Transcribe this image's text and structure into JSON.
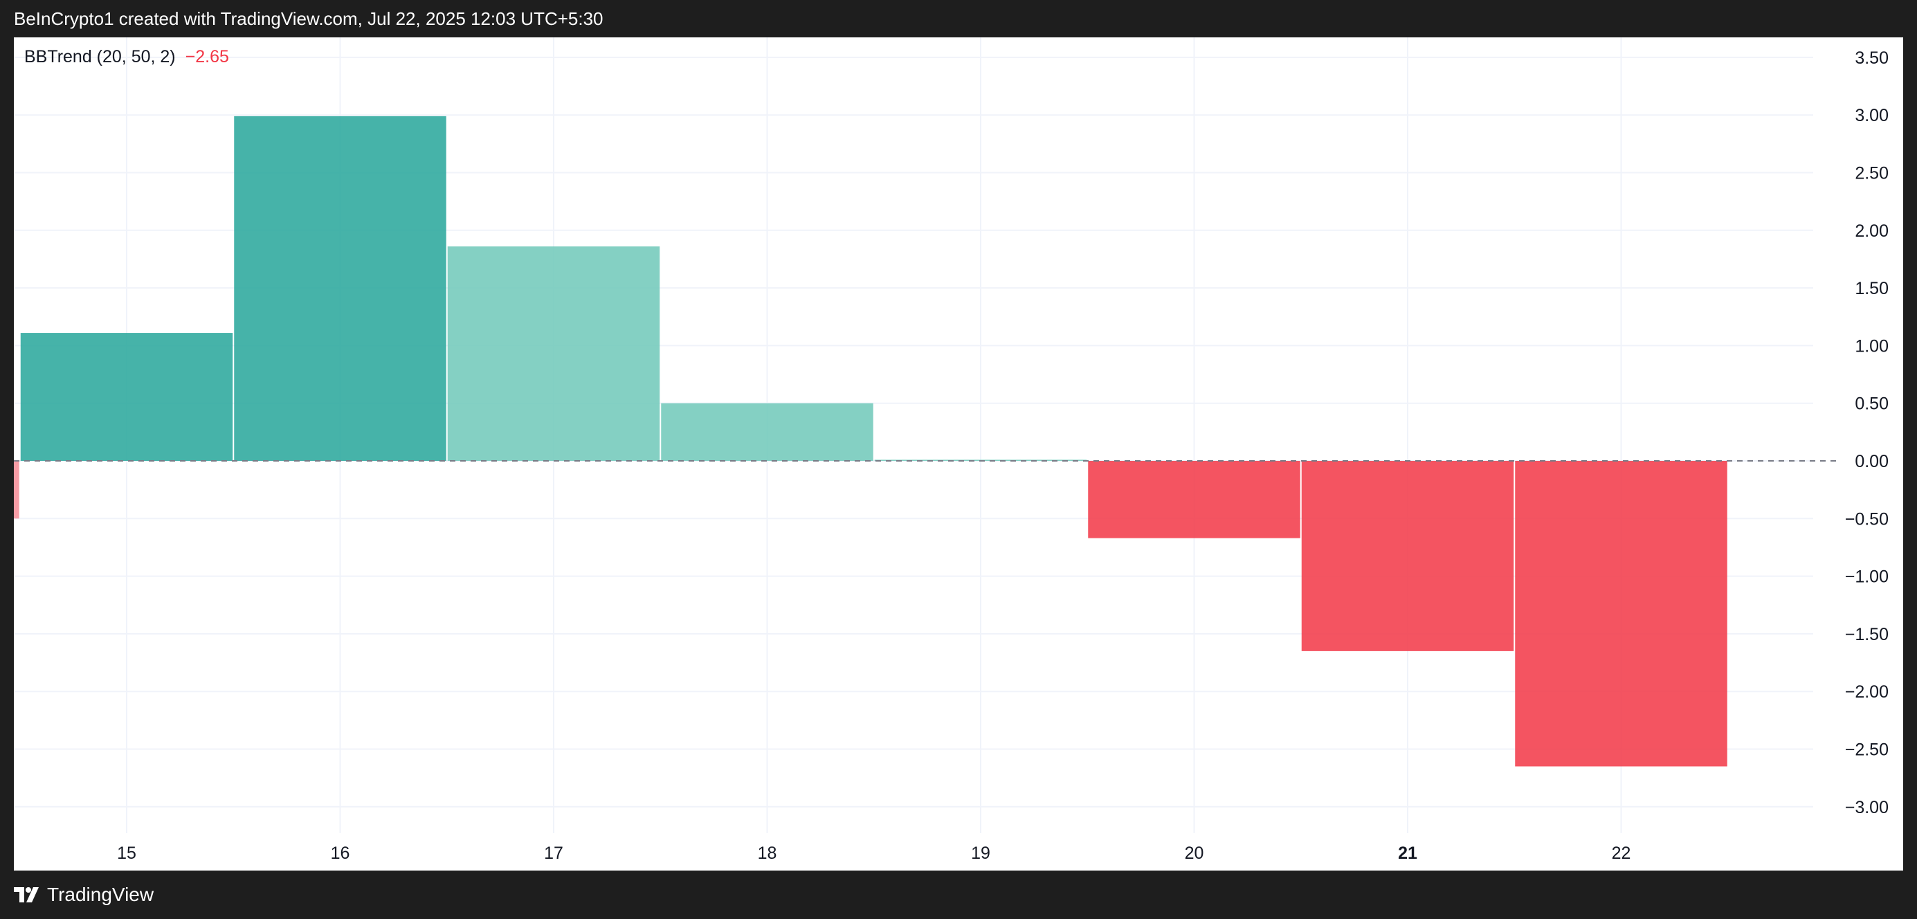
{
  "header": {
    "attribution": "BeInCrypto1 created with TradingView.com, Jul 22, 2025 12:03 UTC+5:30"
  },
  "legend": {
    "name": "BBTrend (20, 50, 2)",
    "value": "−2.65"
  },
  "footer": {
    "brand": "TradingView"
  },
  "colors": {
    "up_strong": "#26a69a",
    "up_weak": "#6fc8b9",
    "down_weak": "#f78c97",
    "down_strong": "#f23645",
    "background": "#ffffff",
    "frame": "#1e1e1e"
  },
  "chart_data": {
    "type": "bar",
    "title": "",
    "xlabel": "",
    "ylabel": "",
    "x_tick_labels": [
      "15",
      "16",
      "17",
      "18",
      "19",
      "20",
      "21",
      "22"
    ],
    "x_tick_bold": [
      "21"
    ],
    "y_tick_labels": [
      "3.50",
      "3.00",
      "2.50",
      "2.00",
      "1.50",
      "1.00",
      "0.50",
      "0.00",
      "−0.50",
      "−1.00",
      "−1.50",
      "−2.00",
      "−2.50",
      "−3.00"
    ],
    "ylim": [
      -3.25,
      3.6
    ],
    "grid": true,
    "zero_line": "dashed",
    "bars": [
      {
        "x": 14,
        "value": -0.5,
        "color": "down_weak",
        "partial": true
      },
      {
        "x": 15,
        "value": 1.11,
        "color": "up_strong"
      },
      {
        "x": 16,
        "value": 2.99,
        "color": "up_strong"
      },
      {
        "x": 17,
        "value": 1.86,
        "color": "up_weak"
      },
      {
        "x": 18,
        "value": 0.5,
        "color": "up_weak"
      },
      {
        "x": 19,
        "value": 0.01,
        "color": "up_weak"
      },
      {
        "x": 20,
        "value": -0.67,
        "color": "down_strong"
      },
      {
        "x": 21,
        "value": -1.65,
        "color": "down_strong"
      },
      {
        "x": 22,
        "value": -2.65,
        "color": "down_strong"
      }
    ]
  }
}
